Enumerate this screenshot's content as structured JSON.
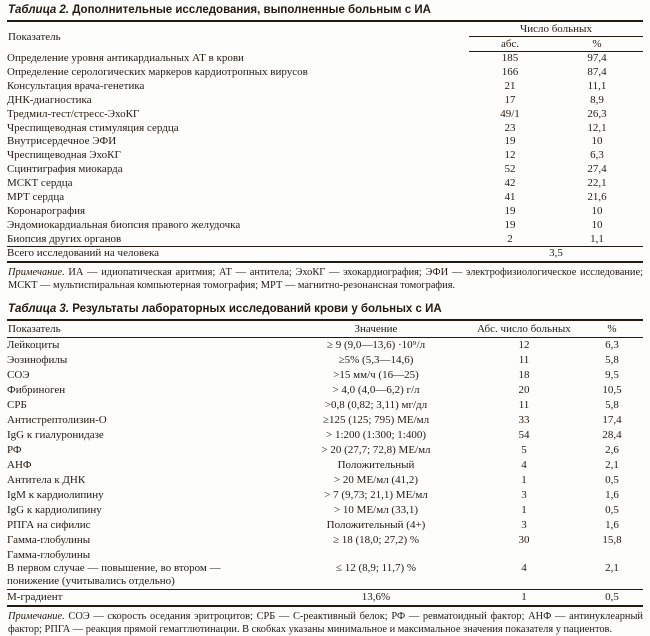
{
  "table2": {
    "title_label": "Таблица 2.",
    "title_text": " Дополнительные исследования, выполненные больным с ИА",
    "header": {
      "indicator": "Показатель",
      "group": "Число больных",
      "abs": "абс.",
      "pct": "%"
    },
    "rows": [
      {
        "label": "Определение уровня антикардиальных АТ в крови",
        "abs": "185",
        "pct": "97,4"
      },
      {
        "label": "Определение серологических маркеров кардиотропных вирусов",
        "abs": "166",
        "pct": "87,4"
      },
      {
        "label": "Консультация врача-генетика",
        "abs": "21",
        "pct": "11,1"
      },
      {
        "label": "ДНК-диагностика",
        "abs": "17",
        "pct": "8,9"
      },
      {
        "label": "Тредмил-тест/стресс-ЭхоКГ",
        "abs": "49/1",
        "pct": "26,3"
      },
      {
        "label": "Чреспищеводная стимуляция сердца",
        "abs": "23",
        "pct": "12,1"
      },
      {
        "label": "Внутрисердечное ЭФИ",
        "abs": "19",
        "pct": "10"
      },
      {
        "label": "Чреспищеводная ЭхоКГ",
        "abs": "12",
        "pct": "6,3"
      },
      {
        "label": "Сцинтиграфия миокарда",
        "abs": "52",
        "pct": "27,4"
      },
      {
        "label": "МСКТ сердца",
        "abs": "42",
        "pct": "22,1"
      },
      {
        "label": "МРТ сердца",
        "abs": "41",
        "pct": "21,6"
      },
      {
        "label": "Коронарография",
        "abs": "19",
        "pct": "10"
      },
      {
        "label": "Эндомиокардиальная биопсия правого желудочка",
        "abs": "19",
        "pct": "10"
      },
      {
        "label": "Биопсия других органов",
        "abs": "2",
        "pct": "1,1"
      }
    ],
    "total": {
      "label": "Всего исследований на человека",
      "value": "3,5"
    },
    "footnote_label": "Примечание.",
    "footnote_text": " ИА — идиопатическая аритмия; АТ — антитела; ЭхоКГ — эхокардиография; ЭФИ — электрофизиологическое исследование; МСКТ — мультиспиральная компьютерная томография; МРТ — магнитно-резонансная томография."
  },
  "table3": {
    "title_label": "Таблица 3.",
    "title_text": " Результаты лабораторных исследований крови у больных с ИА",
    "header": {
      "indicator": "Показатель",
      "value": "Значение",
      "abs": "Абс. число больных",
      "pct": "%"
    },
    "rows": [
      {
        "label": "Лейкоциты",
        "value": "≥ 9 (9,0—13,6) ·10⁹/л",
        "abs": "12",
        "pct": "6,3"
      },
      {
        "label": "Эозинофилы",
        "value": "≥5% (5,3—14,6)",
        "abs": "11",
        "pct": "5,8"
      },
      {
        "label": "СОЭ",
        "value": ">15 мм/ч (16—25)",
        "abs": "18",
        "pct": "9,5"
      },
      {
        "label": "Фибриноген",
        "value": "> 4,0 (4,0—6,2) г/л",
        "abs": "20",
        "pct": "10,5"
      },
      {
        "label": "СРБ",
        "value": ">0,8 (0,82; 3,11) мг/дл",
        "abs": "11",
        "pct": "5,8"
      },
      {
        "label": "Антистрептолизин-О",
        "value": "≥125 (125; 795) МЕ/мл",
        "abs": "33",
        "pct": "17,4"
      },
      {
        "label": "IgG к гиалуронидазе",
        "value": "> 1:200 (1:300; 1:400)",
        "abs": "54",
        "pct": "28,4"
      },
      {
        "label": "РФ",
        "value": "> 20 (27,7; 72,8) МЕ/мл",
        "abs": "5",
        "pct": "2,6"
      },
      {
        "label": "АНФ",
        "value": "Положительный",
        "abs": "4",
        "pct": "2,1"
      },
      {
        "label": "Антитела к ДНК",
        "value": "> 20 МЕ/мл (41,2)",
        "abs": "1",
        "pct": "0,5"
      },
      {
        "label": "IgM к кардиолипину",
        "value": "> 7 (9,73; 21,1) МЕ/мл",
        "abs": "3",
        "pct": "1,6"
      },
      {
        "label": "IgG к кардиолипину",
        "value": "> 10 МЕ/мл (33,1)",
        "abs": "1",
        "pct": "0,5"
      },
      {
        "label": "РПГА на сифилис",
        "value": "Положительный  (4+)",
        "abs": "3",
        "pct": "1,6"
      },
      {
        "label": "Гамма-глобулины",
        "value": "≥ 18 (18,0; 27,2) %",
        "abs": "30",
        "pct": "15,8"
      },
      {
        "label": "Гамма-глобулины\nВ первом случае — повышение, во втором —\nпонижение (учитывались отдельно)",
        "value": "≤ 12 (8,9; 11,7) %",
        "abs": "4",
        "pct": "2,1"
      },
      {
        "label": "М-градиент",
        "value": "13,6%",
        "abs": "1",
        "pct": "0,5"
      }
    ],
    "footnote_label": "Примечание.",
    "footnote_text": "  СОЭ — скорость оседания эритроцитов; СРБ — С-реактивный белок; РФ — ревматоидный фактор; АНФ — антинуклеарный фактор; РПГА — реакция прямой гемагглютинации. В скобках указаны минимальное и максимальное значения показателя у пациентов."
  }
}
